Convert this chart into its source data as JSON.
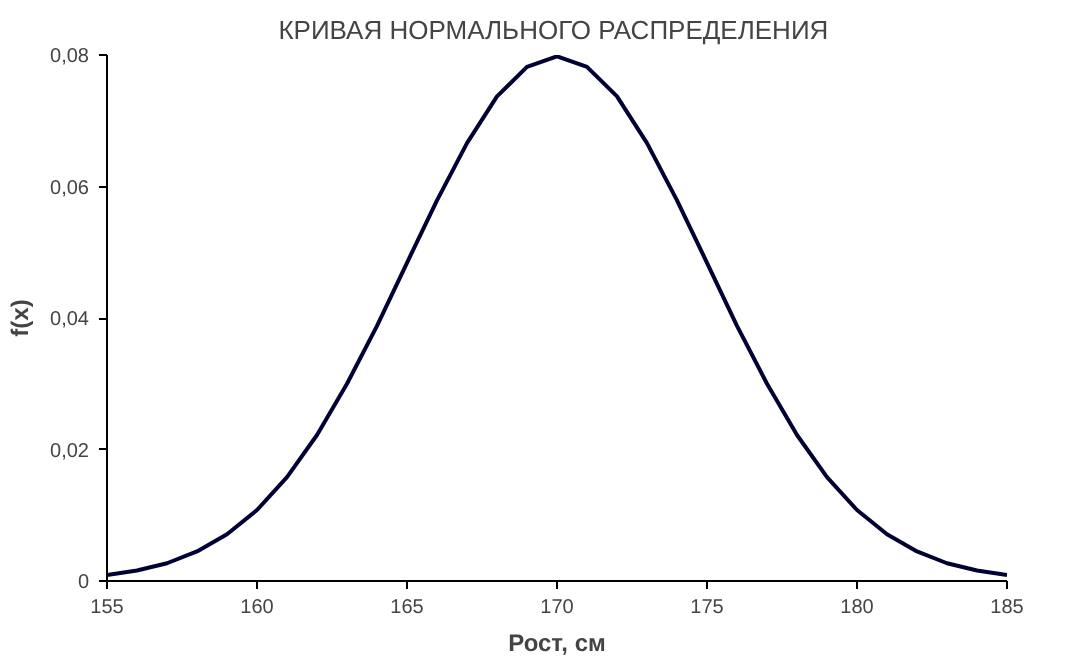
{
  "chart_data": {
    "type": "line",
    "title": "КРИВАЯ  НОРМАЛЬНОГО РАСПРЕДЕЛЕНИЯ",
    "xlabel": "Рост, см",
    "ylabel": "f(x)",
    "x": [
      155,
      156,
      157,
      158,
      159,
      160,
      161,
      162,
      163,
      164,
      165,
      166,
      167,
      168,
      169,
      170,
      171,
      172,
      173,
      174,
      175,
      176,
      177,
      178,
      179,
      180,
      181,
      182,
      183,
      184,
      185
    ],
    "series": [
      {
        "color": "#000033",
        "values": [
          0.0009,
          0.0016,
          0.0027,
          0.0045,
          0.0071,
          0.0108,
          0.0158,
          0.0222,
          0.03,
          0.0388,
          0.0484,
          0.0579,
          0.0666,
          0.0737,
          0.0782,
          0.0798,
          0.0782,
          0.0737,
          0.0666,
          0.0579,
          0.0484,
          0.0388,
          0.03,
          0.0222,
          0.0158,
          0.0108,
          0.0071,
          0.0045,
          0.0027,
          0.0016,
          0.0009
        ]
      }
    ],
    "xlim": [
      155,
      185
    ],
    "ylim": [
      0,
      0.08
    ],
    "xticks": [
      155,
      160,
      165,
      170,
      175,
      180,
      185
    ],
    "yticks": [
      0,
      {
        "value": 0.02,
        "label": "0,02"
      },
      {
        "value": 0.04,
        "label": "0,04"
      },
      {
        "value": 0.06,
        "label": "0,06"
      },
      {
        "value": 0.08,
        "label": "0,08"
      }
    ],
    "grid": false,
    "marker": "none",
    "line_style": "solid"
  }
}
